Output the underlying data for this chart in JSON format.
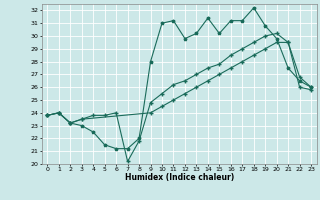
{
  "xlabel": "Humidex (Indice chaleur)",
  "bg_color": "#cce8e8",
  "grid_color": "#ffffff",
  "line_color": "#1a6b5a",
  "xlim": [
    -0.5,
    23.5
  ],
  "ylim": [
    20,
    32.5
  ],
  "xticks": [
    0,
    1,
    2,
    3,
    4,
    5,
    6,
    7,
    8,
    9,
    10,
    11,
    12,
    13,
    14,
    15,
    16,
    17,
    18,
    19,
    20,
    21,
    22,
    23
  ],
  "yticks": [
    20,
    21,
    22,
    23,
    24,
    25,
    26,
    27,
    28,
    29,
    30,
    31,
    32
  ],
  "line1_x": [
    0,
    1,
    2,
    3,
    4,
    5,
    6,
    7,
    8,
    9,
    10,
    11,
    12,
    13,
    14,
    15,
    16,
    17,
    18,
    19,
    20,
    21,
    22,
    23
  ],
  "line1_y": [
    23.8,
    24.0,
    23.2,
    23.0,
    22.5,
    21.5,
    21.2,
    21.2,
    22.0,
    28.0,
    31.0,
    31.2,
    29.8,
    30.2,
    31.4,
    30.2,
    31.2,
    31.2,
    32.2,
    30.8,
    29.8,
    27.5,
    26.5,
    26.0
  ],
  "line2_x": [
    0,
    1,
    2,
    3,
    4,
    5,
    6,
    7,
    8,
    9,
    10,
    11,
    12,
    13,
    14,
    15,
    16,
    17,
    18,
    19,
    20,
    21,
    22,
    23
  ],
  "line2_y": [
    23.8,
    24.0,
    23.2,
    23.5,
    23.8,
    23.8,
    24.0,
    20.2,
    21.8,
    24.8,
    25.5,
    26.2,
    26.5,
    27.0,
    27.5,
    27.8,
    28.5,
    29.0,
    29.5,
    30.0,
    30.2,
    29.5,
    26.8,
    26.0
  ],
  "line3_x": [
    0,
    1,
    2,
    3,
    9,
    10,
    11,
    12,
    13,
    14,
    15,
    16,
    17,
    18,
    19,
    20,
    21,
    22,
    23
  ],
  "line3_y": [
    23.8,
    24.0,
    23.2,
    23.5,
    24.0,
    24.5,
    25.0,
    25.5,
    26.0,
    26.5,
    27.0,
    27.5,
    28.0,
    28.5,
    29.0,
    29.5,
    29.5,
    26.0,
    25.8
  ]
}
